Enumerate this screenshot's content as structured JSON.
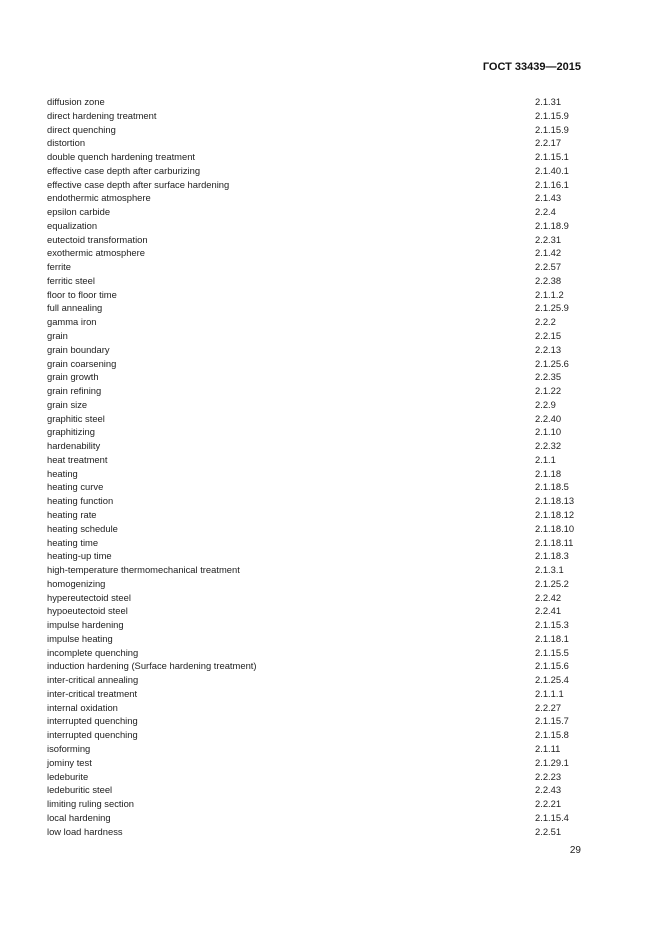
{
  "header": {
    "standard": "ГОСТ 33439—2015"
  },
  "entries": [
    {
      "term": "diffusion zone",
      "ref": "2.1.31"
    },
    {
      "term": "direct hardening treatment",
      "ref": "2.1.15.9"
    },
    {
      "term": "direct quenching",
      "ref": "2.1.15.9"
    },
    {
      "term": "distortion",
      "ref": "2.2.17"
    },
    {
      "term": "double quench hardening treatment",
      "ref": "2.1.15.1"
    },
    {
      "term": "effective case depth after carburizing",
      "ref": "2.1.40.1"
    },
    {
      "term": "effective case depth after surface hardening",
      "ref": "2.1.16.1"
    },
    {
      "term": "endothermic atmosphere",
      "ref": "2.1.43"
    },
    {
      "term": "epsilon carbide",
      "ref": "2.2.4"
    },
    {
      "term": "equalization",
      "ref": "2.1.18.9"
    },
    {
      "term": "eutectoid transformation",
      "ref": "2.2.31"
    },
    {
      "term": "exothermic atmosphere",
      "ref": "2.1.42"
    },
    {
      "term": "ferrite",
      "ref": "2.2.57"
    },
    {
      "term": "ferritic steel",
      "ref": "2.2.38"
    },
    {
      "term": "floor to floor time",
      "ref": "2.1.1.2"
    },
    {
      "term": "full annealing",
      "ref": "2.1.25.9"
    },
    {
      "term": "gamma iron",
      "ref": "2.2.2"
    },
    {
      "term": "grain",
      "ref": "2.2.15"
    },
    {
      "term": "grain boundary",
      "ref": "2.2.13"
    },
    {
      "term": "grain coarsening",
      "ref": "2.1.25.6"
    },
    {
      "term": "grain growth",
      "ref": "2.2.35"
    },
    {
      "term": "grain refining",
      "ref": "2.1.22"
    },
    {
      "term": "grain size",
      "ref": "2.2.9"
    },
    {
      "term": "graphitic steel",
      "ref": "2.2.40"
    },
    {
      "term": "graphitizing",
      "ref": "2.1.10"
    },
    {
      "term": "hardenability",
      "ref": "2.2.32"
    },
    {
      "term": "heat treatment",
      "ref": "2.1.1"
    },
    {
      "term": "heating",
      "ref": "2.1.18"
    },
    {
      "term": "heating curve",
      "ref": "2.1.18.5"
    },
    {
      "term": "heating function",
      "ref": "2.1.18.13"
    },
    {
      "term": "heating rate",
      "ref": "2.1.18.12"
    },
    {
      "term": "heating schedule",
      "ref": "2.1.18.10"
    },
    {
      "term": "heating time",
      "ref": "2.1.18.11"
    },
    {
      "term": "heating-up time",
      "ref": "2.1.18.3"
    },
    {
      "term": "high-temperature thermomechanical treatment",
      "ref": "2.1.3.1"
    },
    {
      "term": "homogenizing",
      "ref": "2.1.25.2"
    },
    {
      "term": "hypereutectoid steel",
      "ref": "2.2.42"
    },
    {
      "term": "hypoeutectoid steel",
      "ref": "2.2.41"
    },
    {
      "term": "impulse hardening",
      "ref": "2.1.15.3"
    },
    {
      "term": "impulse heating",
      "ref": "2.1.18.1"
    },
    {
      "term": "incomplete quenching",
      "ref": "2.1.15.5"
    },
    {
      "term": "induction hardening (Surface hardening treatment)",
      "ref": "2.1.15.6"
    },
    {
      "term": "inter-critical annealing",
      "ref": "2.1.25.4"
    },
    {
      "term": "inter-critical treatment",
      "ref": "2.1.1.1"
    },
    {
      "term": "internal oxidation",
      "ref": "2.2.27"
    },
    {
      "term": "interrupted quenching",
      "ref": "2.1.15.7"
    },
    {
      "term": "interrupted quenching",
      "ref": "2.1.15.8"
    },
    {
      "term": "isoforming",
      "ref": "2.1.11"
    },
    {
      "term": "jominy test",
      "ref": "2.1.29.1"
    },
    {
      "term": "ledeburite",
      "ref": "2.2.23"
    },
    {
      "term": "ledeburitic steel",
      "ref": "2.2.43"
    },
    {
      "term": "limiting ruling section",
      "ref": "2.2.21"
    },
    {
      "term": "local hardening",
      "ref": "2.1.15.4"
    },
    {
      "term": "low load hardness",
      "ref": "2.2.51"
    }
  ],
  "footer": {
    "page_number": "29"
  }
}
